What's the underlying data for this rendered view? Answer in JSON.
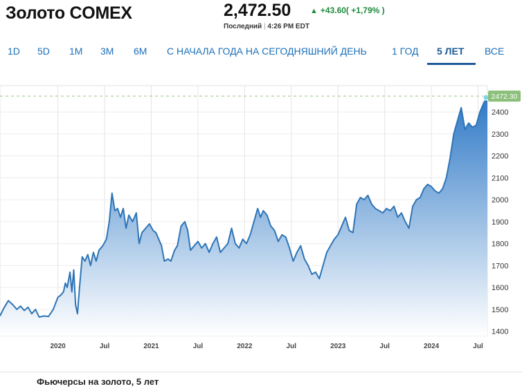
{
  "header": {
    "title": "Золото COMEX",
    "price": "2,472.50",
    "change": "+43.60( +1,79% )",
    "status_label": "Последний",
    "status_time": "4:26 PM EDT"
  },
  "tabs": [
    {
      "label": "1D",
      "active": false
    },
    {
      "label": "5D",
      "active": false
    },
    {
      "label": "1M",
      "active": false
    },
    {
      "label": "3M",
      "active": false
    },
    {
      "label": "6M",
      "active": false
    },
    {
      "label": "С НАЧАЛА ГОДА НА СЕГОДНЯШНИЙ ДЕНЬ",
      "active": false
    },
    {
      "label": "1 ГОД",
      "active": false
    },
    {
      "label": "5 ЛЕТ",
      "active": true
    },
    {
      "label": "ВСЕ",
      "active": false
    }
  ],
  "caption": "Фьючерсы на золото, 5 лет",
  "colors": {
    "line": "#2e74b5",
    "fill_top": "#2f79c6",
    "fill_bottom": "#ffffff",
    "last_badge": "#8cc07a",
    "reference_line": "#9bc48a",
    "positive": "#1e8a3c"
  },
  "chart_data": {
    "type": "area",
    "title": "",
    "xlabel": "",
    "ylabel": "",
    "ylim": [
      1380,
      2520
    ],
    "xlim": [
      2019.38,
      2024.6
    ],
    "yticks": [
      1400,
      1500,
      1600,
      1700,
      1800,
      1900,
      2000,
      2100,
      2200,
      2300,
      2400
    ],
    "xticks": [
      {
        "x": 2020.0,
        "label": "2020"
      },
      {
        "x": 2020.5,
        "label": "Jul"
      },
      {
        "x": 2021.0,
        "label": "2021"
      },
      {
        "x": 2021.5,
        "label": "Jul"
      },
      {
        "x": 2022.0,
        "label": "2022"
      },
      {
        "x": 2022.5,
        "label": "Jul"
      },
      {
        "x": 2023.0,
        "label": "2023"
      },
      {
        "x": 2023.5,
        "label": "Jul"
      },
      {
        "x": 2024.0,
        "label": "2024"
      },
      {
        "x": 2024.5,
        "label": "Jul"
      }
    ],
    "last_value": 2472.3,
    "last_label": "2472.30",
    "grid": true,
    "series": [
      {
        "points": [
          [
            2019.38,
            1470
          ],
          [
            2019.42,
            1505
          ],
          [
            2019.47,
            1540
          ],
          [
            2019.52,
            1520
          ],
          [
            2019.56,
            1500
          ],
          [
            2019.6,
            1515
          ],
          [
            2019.64,
            1495
          ],
          [
            2019.68,
            1510
          ],
          [
            2019.72,
            1480
          ],
          [
            2019.76,
            1500
          ],
          [
            2019.8,
            1465
          ],
          [
            2019.85,
            1470
          ],
          [
            2019.9,
            1468
          ],
          [
            2019.95,
            1500
          ],
          [
            2020.0,
            1555
          ],
          [
            2020.03,
            1565
          ],
          [
            2020.06,
            1580
          ],
          [
            2020.08,
            1620
          ],
          [
            2020.1,
            1600
          ],
          [
            2020.13,
            1670
          ],
          [
            2020.15,
            1580
          ],
          [
            2020.17,
            1680
          ],
          [
            2020.19,
            1520
          ],
          [
            2020.21,
            1480
          ],
          [
            2020.23,
            1590
          ],
          [
            2020.26,
            1740
          ],
          [
            2020.29,
            1720
          ],
          [
            2020.32,
            1750
          ],
          [
            2020.35,
            1700
          ],
          [
            2020.38,
            1760
          ],
          [
            2020.41,
            1720
          ],
          [
            2020.44,
            1770
          ],
          [
            2020.48,
            1790
          ],
          [
            2020.52,
            1820
          ],
          [
            2020.55,
            1900
          ],
          [
            2020.58,
            2030
          ],
          [
            2020.61,
            1950
          ],
          [
            2020.64,
            1960
          ],
          [
            2020.67,
            1920
          ],
          [
            2020.7,
            1960
          ],
          [
            2020.73,
            1870
          ],
          [
            2020.76,
            1930
          ],
          [
            2020.8,
            1900
          ],
          [
            2020.84,
            1940
          ],
          [
            2020.87,
            1800
          ],
          [
            2020.9,
            1850
          ],
          [
            2020.94,
            1870
          ],
          [
            2020.98,
            1890
          ],
          [
            2021.02,
            1860
          ],
          [
            2021.05,
            1850
          ],
          [
            2021.08,
            1820
          ],
          [
            2021.11,
            1790
          ],
          [
            2021.14,
            1720
          ],
          [
            2021.18,
            1730
          ],
          [
            2021.21,
            1720
          ],
          [
            2021.25,
            1770
          ],
          [
            2021.28,
            1790
          ],
          [
            2021.32,
            1880
          ],
          [
            2021.36,
            1900
          ],
          [
            2021.39,
            1860
          ],
          [
            2021.42,
            1770
          ],
          [
            2021.46,
            1790
          ],
          [
            2021.5,
            1810
          ],
          [
            2021.54,
            1780
          ],
          [
            2021.58,
            1800
          ],
          [
            2021.62,
            1760
          ],
          [
            2021.66,
            1800
          ],
          [
            2021.7,
            1830
          ],
          [
            2021.74,
            1760
          ],
          [
            2021.78,
            1780
          ],
          [
            2021.82,
            1800
          ],
          [
            2021.86,
            1870
          ],
          [
            2021.9,
            1800
          ],
          [
            2021.94,
            1780
          ],
          [
            2021.98,
            1820
          ],
          [
            2022.02,
            1800
          ],
          [
            2022.06,
            1840
          ],
          [
            2022.1,
            1900
          ],
          [
            2022.14,
            1960
          ],
          [
            2022.17,
            1920
          ],
          [
            2022.2,
            1950
          ],
          [
            2022.24,
            1930
          ],
          [
            2022.28,
            1880
          ],
          [
            2022.32,
            1860
          ],
          [
            2022.36,
            1810
          ],
          [
            2022.4,
            1840
          ],
          [
            2022.44,
            1830
          ],
          [
            2022.48,
            1780
          ],
          [
            2022.52,
            1720
          ],
          [
            2022.56,
            1760
          ],
          [
            2022.6,
            1790
          ],
          [
            2022.64,
            1730
          ],
          [
            2022.68,
            1700
          ],
          [
            2022.72,
            1660
          ],
          [
            2022.76,
            1670
          ],
          [
            2022.8,
            1640
          ],
          [
            2022.84,
            1700
          ],
          [
            2022.88,
            1760
          ],
          [
            2022.92,
            1790
          ],
          [
            2022.96,
            1820
          ],
          [
            2023.0,
            1840
          ],
          [
            2023.04,
            1880
          ],
          [
            2023.08,
            1920
          ],
          [
            2023.12,
            1860
          ],
          [
            2023.16,
            1850
          ],
          [
            2023.2,
            1980
          ],
          [
            2023.24,
            2010
          ],
          [
            2023.28,
            2000
          ],
          [
            2023.32,
            2020
          ],
          [
            2023.36,
            1980
          ],
          [
            2023.4,
            1960
          ],
          [
            2023.44,
            1950
          ],
          [
            2023.48,
            1940
          ],
          [
            2023.52,
            1960
          ],
          [
            2023.56,
            1950
          ],
          [
            2023.6,
            1970
          ],
          [
            2023.64,
            1920
          ],
          [
            2023.68,
            1940
          ],
          [
            2023.72,
            1900
          ],
          [
            2023.76,
            1870
          ],
          [
            2023.8,
            1970
          ],
          [
            2023.84,
            2000
          ],
          [
            2023.88,
            2010
          ],
          [
            2023.92,
            2050
          ],
          [
            2023.96,
            2070
          ],
          [
            2024.0,
            2060
          ],
          [
            2024.04,
            2040
          ],
          [
            2024.08,
            2030
          ],
          [
            2024.12,
            2050
          ],
          [
            2024.16,
            2100
          ],
          [
            2024.2,
            2190
          ],
          [
            2024.24,
            2300
          ],
          [
            2024.28,
            2360
          ],
          [
            2024.32,
            2420
          ],
          [
            2024.36,
            2320
          ],
          [
            2024.4,
            2350
          ],
          [
            2024.44,
            2330
          ],
          [
            2024.48,
            2340
          ],
          [
            2024.52,
            2400
          ],
          [
            2024.56,
            2440
          ],
          [
            2024.6,
            2472
          ]
        ]
      }
    ]
  }
}
